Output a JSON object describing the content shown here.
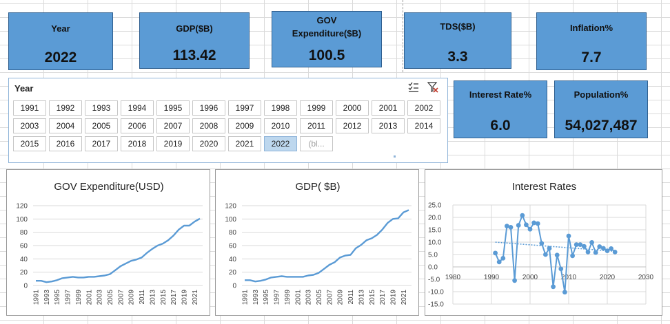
{
  "kpis": {
    "year": {
      "label": "Year",
      "value": "2022"
    },
    "gdp": {
      "label": "GDP($B)",
      "value": "113.42"
    },
    "gov": {
      "label_line1": "GOV",
      "label_line2": "Expenditure($B)",
      "value": "100.5"
    },
    "tds": {
      "label": "TDS($B)",
      "value": "3.3"
    },
    "inflation": {
      "label": "Inflation%",
      "value": "7.7"
    },
    "interest": {
      "label": "Interest Rate%",
      "value": "6.0"
    },
    "population": {
      "label": "Population%",
      "value": "54,027,487"
    }
  },
  "slicer": {
    "title": "Year",
    "multiselect_icon": "multi-select-icon",
    "clear_filter_icon": "clear-filter-icon",
    "items": [
      "1991",
      "1992",
      "1993",
      "1994",
      "1995",
      "1996",
      "1997",
      "1998",
      "1999",
      "2000",
      "2001",
      "2002",
      "2003",
      "2004",
      "2005",
      "2006",
      "2007",
      "2008",
      "2009",
      "2010",
      "2011",
      "2012",
      "2013",
      "2014",
      "2015",
      "2016",
      "2017",
      "2018",
      "2019",
      "2020",
      "2021",
      "2022",
      "(bl..."
    ],
    "selected": "2022"
  },
  "colors": {
    "card": "#5b9bd5",
    "line": "#5b9bd5",
    "selected_chip": "#bdd7ee"
  },
  "chart_data": [
    {
      "type": "line",
      "title": "GOV Expenditure(USD)",
      "x": [
        1991,
        1992,
        1993,
        1994,
        1995,
        1996,
        1997,
        1998,
        1999,
        2000,
        2001,
        2002,
        2003,
        2004,
        2005,
        2006,
        2007,
        2008,
        2009,
        2010,
        2011,
        2012,
        2013,
        2014,
        2015,
        2016,
        2017,
        2018,
        2019,
        2020,
        2021,
        2022
      ],
      "x_tick_labels": [
        "1991",
        "1993",
        "1995",
        "1997",
        "1999",
        "2001",
        "2003",
        "2005",
        "2007",
        "2009",
        "2011",
        "2013",
        "2015",
        "2017",
        "2019",
        "2021"
      ],
      "values": [
        7,
        7,
        5,
        6,
        8,
        11,
        12,
        13,
        12,
        12,
        13,
        13,
        14,
        15,
        17,
        23,
        29,
        33,
        37,
        39,
        42,
        49,
        55,
        60,
        63,
        68,
        75,
        84,
        90,
        90,
        96,
        100.5
      ],
      "ylim": [
        0,
        120
      ],
      "y_ticks": [
        0,
        20,
        40,
        60,
        80,
        100,
        120
      ],
      "grid": true
    },
    {
      "type": "line",
      "title": "GDP( $B)",
      "x": [
        1991,
        1992,
        1993,
        1994,
        1995,
        1996,
        1997,
        1998,
        1999,
        2000,
        2001,
        2002,
        2003,
        2004,
        2005,
        2006,
        2007,
        2008,
        2009,
        2010,
        2011,
        2012,
        2013,
        2014,
        2015,
        2016,
        2017,
        2018,
        2019,
        2020,
        2021,
        2022
      ],
      "x_tick_labels": [
        "1991",
        "1993",
        "1995",
        "1997",
        "1999",
        "2001",
        "2003",
        "2005",
        "2007",
        "2009",
        "2011",
        "2013",
        "2015",
        "2017",
        "2019",
        "2021"
      ],
      "values": [
        8,
        8,
        6,
        7,
        9,
        12,
        13,
        14,
        13,
        13,
        13,
        13,
        15,
        16,
        19,
        25,
        31,
        35,
        42,
        45,
        46,
        56,
        61,
        68,
        71,
        76,
        84,
        94,
        100,
        101,
        110,
        113.42
      ],
      "ylim": [
        0,
        120
      ],
      "y_ticks": [
        0,
        20,
        40,
        60,
        80,
        100,
        120
      ],
      "grid": true
    },
    {
      "type": "scatter",
      "title": "Interest Rates",
      "x": [
        1991,
        1992,
        1993,
        1994,
        1995,
        1996,
        1997,
        1998,
        1999,
        2000,
        2001,
        2002,
        2003,
        2004,
        2005,
        2006,
        2007,
        2008,
        2009,
        2010,
        2011,
        2012,
        2013,
        2014,
        2015,
        2016,
        2017,
        2018,
        2019,
        2020,
        2021,
        2022
      ],
      "values": [
        5.6,
        2.0,
        3.5,
        16.5,
        16.0,
        -5.5,
        16.8,
        20.8,
        17.0,
        15.2,
        17.8,
        17.5,
        9.5,
        5.0,
        7.5,
        -8.0,
        4.8,
        -0.8,
        -10.2,
        12.5,
        4.5,
        9.0,
        9.0,
        8.3,
        6.0,
        9.9,
        5.8,
        8.2,
        7.5,
        6.5,
        7.4,
        6.0
      ],
      "connected": true,
      "trendline": {
        "type": "linear",
        "style": "dotted",
        "from": [
          1991,
          10.0
        ],
        "to": [
          2022,
          6.3
        ]
      },
      "xlim": [
        1980,
        2030
      ],
      "x_ticks": [
        1980,
        1990,
        2000,
        2010,
        2020,
        2030
      ],
      "ylim": [
        -15,
        25
      ],
      "y_ticks": [
        -15,
        -10,
        -5,
        0,
        5,
        10,
        15,
        20,
        25
      ],
      "y_tick_labels": [
        "-15.0",
        "-10.0",
        "-5.0",
        "0.0",
        "5.0",
        "10.0",
        "15.0",
        "20.0",
        "25.0"
      ],
      "grid": true
    }
  ]
}
